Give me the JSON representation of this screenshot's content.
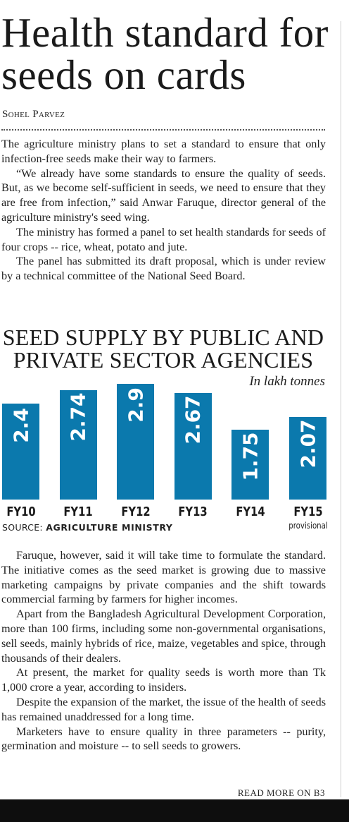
{
  "article": {
    "headline": "Health standard for seeds on cards",
    "byline": "Sohel Parvez",
    "paragraphs_top": [
      "The agriculture ministry plans to set a standard to ensure that only infection-free seeds make their way to farmers.",
      "“We already have some standards to ensure the quality of seeds. But, as we become self-sufficient in seeds, we need to ensure that they are free from infection,” said Anwar Faruque, director general of the agriculture ministry's seed wing.",
      "The ministry has formed a panel to set health standards for seeds of four crops -- rice, wheat, potato and jute.",
      "The panel has submitted its draft proposal, which is under review by a technical committee of the National Seed Board."
    ],
    "paragraphs_bottom": [
      "Faruque, however, said it will take time to formulate the standard. The initiative comes as the seed market is growing due to massive marketing campaigns by private companies and the shift towards commercial farming by farmers for higher incomes.",
      "Apart from the Bangladesh Agricultural Development Corporation, more than 100 firms, including some non-governmental organisations, sell seeds, mainly hybrids of rice, maize, vegetables and spice, through thousands of their dealers.",
      "At present, the market for quality seeds is worth more than Tk 1,000 crore a year, according to insiders.",
      "Despite the expansion of the market, the issue of the health of seeds has remained unaddressed for a long time.",
      "Marketers have to ensure quality in three parameters -- purity, germination and moisture -- to sell seeds to growers."
    ],
    "read_more": "READ MORE ON B3"
  },
  "chart_data": {
    "type": "bar",
    "title": "SEED SUPPLY BY PUBLIC AND PRIVATE SECTOR AGENCIES",
    "unit_label": "In lakh tonnes",
    "categories": [
      "FY10",
      "FY11",
      "FY12",
      "FY13",
      "FY14",
      "FY15"
    ],
    "category_notes": [
      "",
      "",
      "",
      "",
      "",
      "provisional"
    ],
    "values": [
      2.4,
      2.74,
      2.9,
      2.67,
      1.75,
      2.07
    ],
    "value_labels": [
      "2.4",
      "2.74",
      "2.9",
      "2.67",
      "1.75",
      "2.07"
    ],
    "ylim": [
      0,
      3.0
    ],
    "bar_color": "#0b79ad",
    "source_prefix": "SOURCE: ",
    "source_name": "AGRICULTURE MINISTRY"
  }
}
